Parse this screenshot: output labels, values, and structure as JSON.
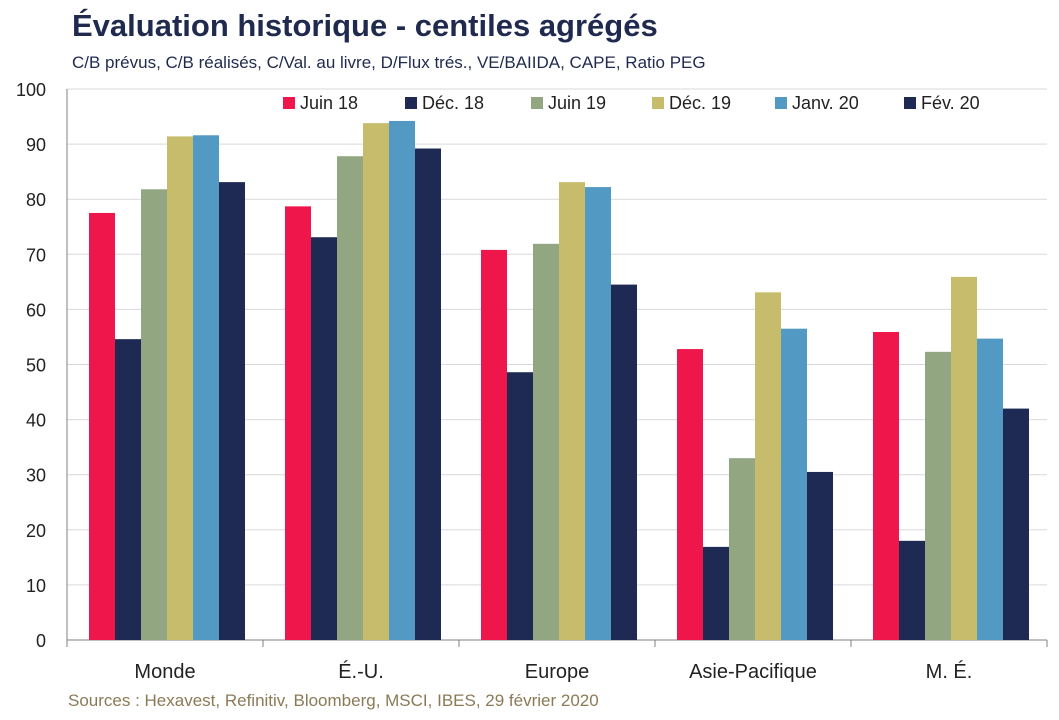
{
  "title": "Évaluation historique - centiles agrégés",
  "subtitle": "C/B prévus, C/B réalisés, C/Val. au livre, D/Flux trés., VE/BAIIDA, CAPE, Ratio PEG",
  "source": "Sources : Hexavest, Refinitiv, Bloomberg, MSCI, IBES, 29 février 2020",
  "chart_data": {
    "type": "bar",
    "categories": [
      "Monde",
      "É.-U.",
      "Europe",
      "Asie-Pacifique",
      "M. É."
    ],
    "series": [
      {
        "name": "Juin 18",
        "color": "#ee164b",
        "values": [
          77.5,
          78.7,
          70.8,
          52.8,
          55.9
        ]
      },
      {
        "name": "Déc. 18",
        "color": "#1f2a54",
        "values": [
          54.6,
          73.1,
          48.6,
          16.9,
          18.0
        ]
      },
      {
        "name": "Juin 19",
        "color": "#93a682",
        "values": [
          81.8,
          87.8,
          71.9,
          33.0,
          52.3
        ]
      },
      {
        "name": "Déc. 19",
        "color": "#c7bc6b",
        "values": [
          91.4,
          93.8,
          83.1,
          63.1,
          65.9
        ]
      },
      {
        "name": "Janv. 20",
        "color": "#529ac3",
        "values": [
          91.6,
          94.2,
          82.2,
          56.5,
          54.7
        ]
      },
      {
        "name": "Fév. 20",
        "color": "#1f2a54",
        "values": [
          83.1,
          89.2,
          64.5,
          30.5,
          42.0
        ]
      }
    ],
    "ylim": [
      0,
      100
    ],
    "yticks": [
      0,
      10,
      20,
      30,
      40,
      50,
      60,
      70,
      80,
      90,
      100
    ],
    "grid": true,
    "legend_position": "top"
  }
}
